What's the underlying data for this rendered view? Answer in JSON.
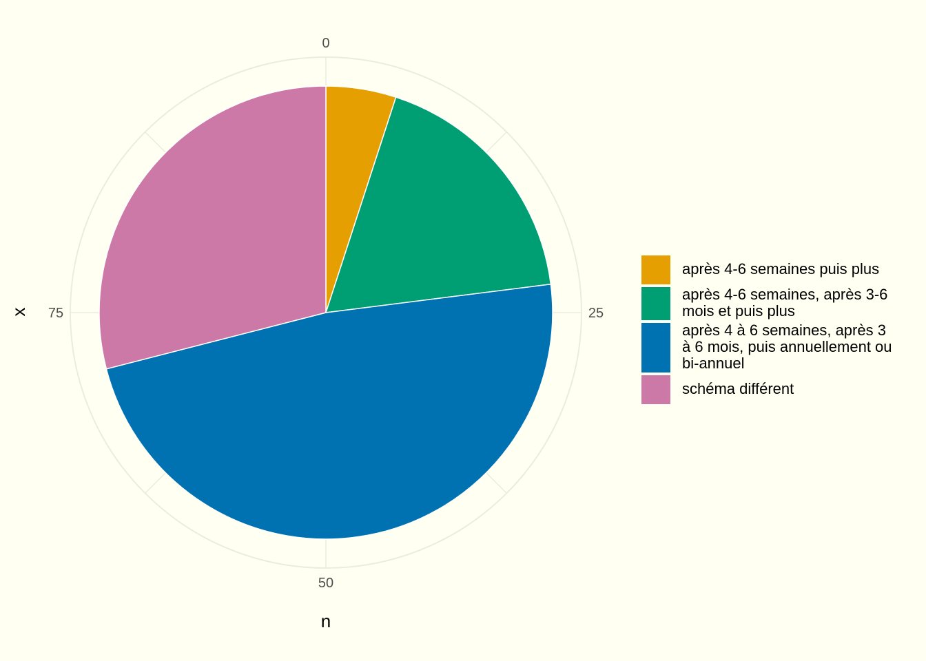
{
  "chart_data": {
    "type": "pie",
    "xlabel": "n",
    "ylabel": "x",
    "total": 100,
    "tick_labels": [
      "0",
      "25",
      "50",
      "75"
    ],
    "tick_values": [
      0,
      25,
      50,
      75
    ],
    "grid": true,
    "legend_position": "right",
    "slices": [
      {
        "label": "après 4-6 semaines puis plus",
        "value": 5,
        "color": "#E69F00"
      },
      {
        "label": "après 4-6 semaines, après 3-6 mois et puis plus",
        "value": 18,
        "color": "#009E73"
      },
      {
        "label": "après 4 à 6 semaines, après 3 à 6 mois, puis annuellement ou bi-annuel",
        "value": 48,
        "color": "#0072B2"
      },
      {
        "label": "schéma différent",
        "value": 29,
        "color": "#CC79A7"
      }
    ],
    "legend": [
      [
        "après 4-6 semaines puis plus"
      ],
      [
        "après 4-6 semaines, après 3-6",
        "mois et puis plus"
      ],
      [
        "après 4 à 6 semaines, après 3",
        "à 6 mois, puis annuellement ou",
        "bi-annuel"
      ],
      [
        "schéma différent"
      ]
    ]
  }
}
